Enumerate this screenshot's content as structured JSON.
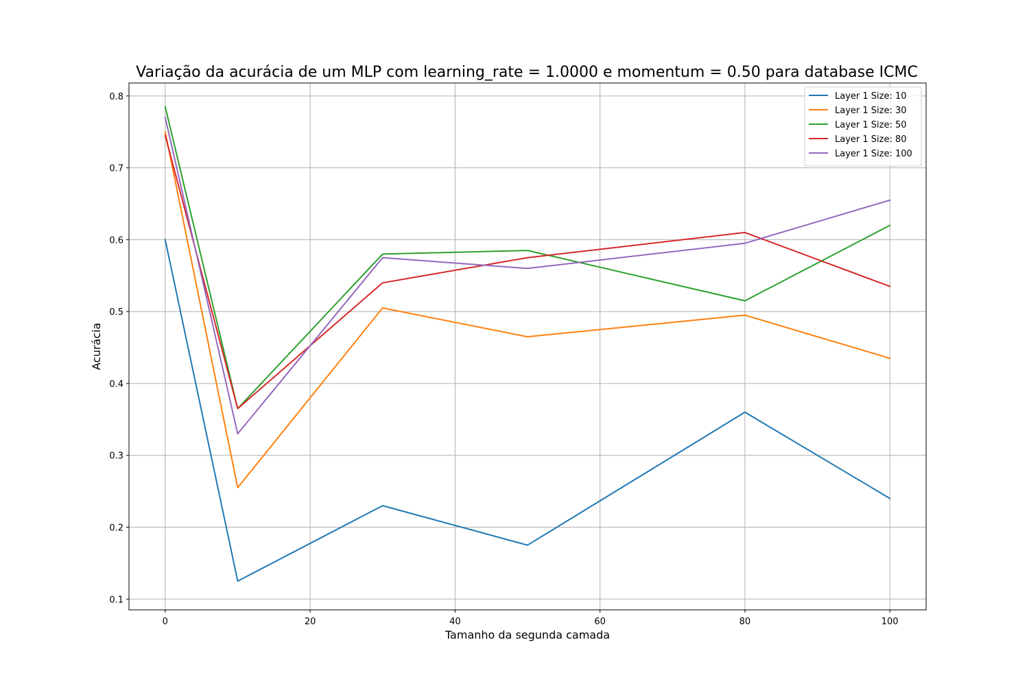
{
  "chart_data": {
    "type": "line",
    "title": "Variação da acurácia de um MLP com learning_rate = 1.0000 e momentum = 0.50 para database ICMC",
    "xlabel": "Tamanho da segunda camada",
    "ylabel": "Acurácia",
    "x": [
      0,
      10,
      30,
      50,
      80,
      100
    ],
    "xlim": [
      -5,
      105
    ],
    "ylim": [
      0.085,
      0.818
    ],
    "xticks": [
      0,
      20,
      40,
      60,
      80,
      100
    ],
    "yticks": [
      0.1,
      0.2,
      0.3,
      0.4,
      0.5,
      0.6,
      0.7,
      0.8
    ],
    "xtick_labels": [
      "0",
      "20",
      "40",
      "60",
      "80",
      "100"
    ],
    "ytick_labels": [
      "0.1",
      "0.2",
      "0.3",
      "0.4",
      "0.5",
      "0.6",
      "0.7",
      "0.8"
    ],
    "grid": true,
    "legend_position": "top-right",
    "series": [
      {
        "name": "Layer 1 Size: 10",
        "color": "#1f77b4",
        "values": [
          0.6,
          0.125,
          0.23,
          0.175,
          0.36,
          0.24
        ]
      },
      {
        "name": "Layer 1 Size: 30",
        "color": "#ff7f0e",
        "values": [
          0.75,
          0.255,
          0.505,
          0.465,
          0.495,
          0.435
        ]
      },
      {
        "name": "Layer 1 Size: 50",
        "color": "#2ca02c",
        "values": [
          0.785,
          0.365,
          0.58,
          0.585,
          0.515,
          0.62
        ]
      },
      {
        "name": "Layer 1 Size: 80",
        "color": "#d62728",
        "values": [
          0.745,
          0.365,
          0.54,
          0.575,
          0.61,
          0.535
        ]
      },
      {
        "name": "Layer 1 Size: 100",
        "color": "#9467bd",
        "values": [
          0.77,
          0.33,
          0.575,
          0.56,
          0.595,
          0.655
        ]
      }
    ]
  }
}
